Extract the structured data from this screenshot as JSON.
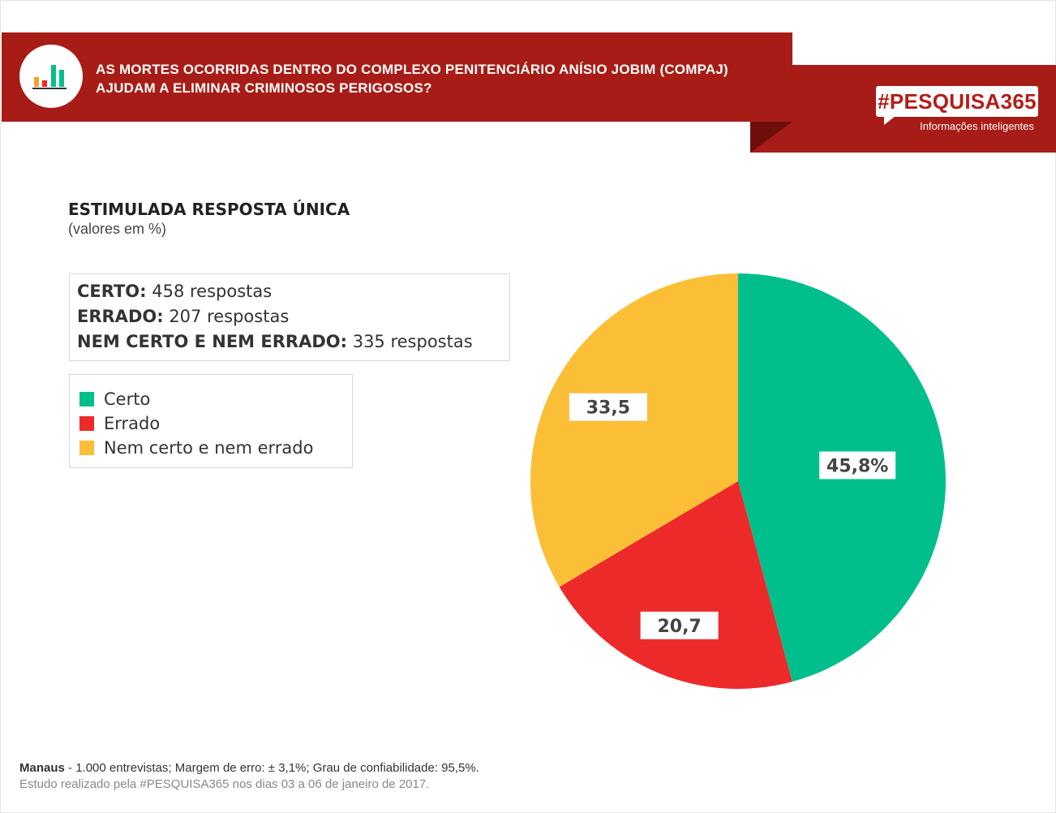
{
  "header": {
    "question_line1": "AS MORTES OCORRIDAS DENTRO DO COMPLEXO PENITENCIÁRIO ANÍSIO JOBIM (COMPAJ)",
    "question_line2": "AJUDAM A ELIMINAR CRIMINOSOS PERIGOSOS?",
    "brand": "#PESQUISA365",
    "tagline": "Informações inteligentes"
  },
  "summary": {
    "title": "ESTIMULADA RESPOSTA ÚNICA",
    "subtitle": "(valores em %)"
  },
  "counts": [
    {
      "label": "CERTO:",
      "value": "458 respostas"
    },
    {
      "label": "ERRADO:",
      "value": "207 respostas"
    },
    {
      "label": "NEM CERTO E NEM ERRADO:",
      "value": "335 respostas"
    }
  ],
  "chart_data": {
    "type": "pie",
    "title": "",
    "slices": [
      {
        "name": "Certo",
        "value": 45.8,
        "label": "45,8%",
        "color": "#01bf8c"
      },
      {
        "name": "Errado",
        "value": 20.7,
        "label": "20,7",
        "color": "#ec2a2a"
      },
      {
        "name": "Nem certo e nem errado",
        "value": 33.5,
        "label": "33,5",
        "color": "#fbbf37"
      }
    ],
    "legend": [
      "Certo",
      "Errado",
      "Nem certo e nem errado"
    ],
    "legend_position": "left",
    "start_angle": "12 o'clock, clockwise"
  },
  "footer": {
    "location": "Manaus",
    "line1_rest": " - 1.000 entrevistas; Margem de erro: ± 3,1%; Grau de confiabilidade: 95,5%.",
    "line2": "Estudo realizado pela #PESQUISA365 nos dias 03 a 06 de janeiro de 2017."
  },
  "colors": {
    "banner": "#a81c17",
    "certo": "#01bf8c",
    "errado": "#ec2a2a",
    "nem": "#fbbf37"
  },
  "icons": {
    "logo": "bar-chart-icon"
  }
}
